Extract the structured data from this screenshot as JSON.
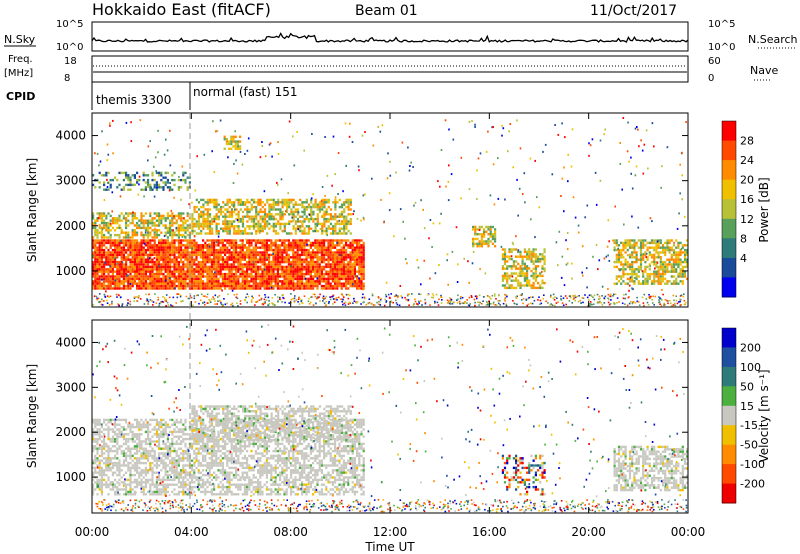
{
  "header": {
    "title": "Hokkaido East (fitACF)",
    "beam": "Beam 01",
    "date": "11/Oct/2017"
  },
  "nsky": {
    "label": "N.Sky",
    "right_label": "N.Search",
    "ticks": [
      "10^5",
      "10^0"
    ],
    "right_ticks": [
      "10^5",
      "10^0"
    ]
  },
  "freq": {
    "label_line1": "Freq.",
    "label_line2": "[MHz]",
    "ticks": [
      "18",
      "8"
    ],
    "right_label": "Nave",
    "right_ticks": [
      "60",
      "0"
    ]
  },
  "cpid": {
    "label": "CPID",
    "modes": [
      "themis 3300",
      "normal (fast) 151"
    ]
  },
  "chart_data": [
    {
      "type": "heatmap",
      "name": "power-panel",
      "ylabel": "Slant Range [km]",
      "ylim": [
        200,
        4500
      ],
      "yticks": [
        "4000",
        "3000",
        "2000",
        "1000"
      ],
      "xlabel": "Time UT",
      "xticks": [
        "00:00",
        "04:00",
        "08:00",
        "12:00",
        "16:00",
        "20:00",
        "00:00"
      ],
      "colorbar": {
        "label": "Power [dB]",
        "ticks": [
          "28",
          "24",
          "20",
          "16",
          "12",
          "8",
          "4"
        ],
        "colors": [
          "#ff0000",
          "#ff4a00",
          "#ff8c00",
          "#f0c000",
          "#b8c038",
          "#59a05a",
          "#2f7b7a",
          "#1a4a9a",
          "#0000ee"
        ]
      },
      "regions": [
        {
          "t": [
            0.0,
            11.0
          ],
          "r": [
            600,
            1700
          ],
          "level": "high"
        },
        {
          "t": [
            0.0,
            4.0
          ],
          "r": [
            1700,
            2300
          ],
          "level": "mid"
        },
        {
          "t": [
            4.0,
            10.5
          ],
          "r": [
            1800,
            2600
          ],
          "level": "mid"
        },
        {
          "t": [
            0.0,
            4.0
          ],
          "r": [
            2800,
            3200
          ],
          "level": "low"
        },
        {
          "t": [
            15.3,
            16.3
          ],
          "r": [
            1500,
            2000
          ],
          "level": "mid"
        },
        {
          "t": [
            16.5,
            18.3
          ],
          "r": [
            600,
            1500
          ],
          "level": "mid"
        },
        {
          "t": [
            21.0,
            24.0
          ],
          "r": [
            700,
            1700
          ],
          "level": "mid"
        },
        {
          "t": [
            5.3,
            6.0
          ],
          "r": [
            3700,
            4000
          ],
          "level": "mid"
        }
      ]
    },
    {
      "type": "heatmap",
      "name": "velocity-panel",
      "ylabel": "Slant Range [km]",
      "ylim": [
        200,
        4500
      ],
      "yticks": [
        "4000",
        "3000",
        "2000",
        "1000"
      ],
      "xlabel": "Time UT",
      "xticks": [
        "00:00",
        "04:00",
        "08:00",
        "12:00",
        "16:00",
        "20:00",
        "00:00"
      ],
      "colorbar": {
        "label": "Velocity [m s⁻¹]",
        "ticks": [
          "200",
          "100",
          "50",
          "15",
          "-15",
          "-50",
          "-100",
          "-200"
        ],
        "colors": [
          "#0000cc",
          "#1f4fa0",
          "#2f7b7a",
          "#4cb040",
          "#c8c8c0",
          "#f0c000",
          "#ff8c00",
          "#ff4a00",
          "#ee0000"
        ]
      },
      "regions": [
        {
          "t": [
            0.0,
            11.0
          ],
          "r": [
            600,
            2300
          ],
          "level": "ground"
        },
        {
          "t": [
            4.0,
            10.5
          ],
          "r": [
            1800,
            2600
          ],
          "level": "ground"
        },
        {
          "t": [
            21.0,
            24.0
          ],
          "r": [
            700,
            1700
          ],
          "level": "ground"
        },
        {
          "t": [
            16.5,
            18.3
          ],
          "r": [
            600,
            1500
          ],
          "level": "mixed"
        }
      ]
    }
  ]
}
